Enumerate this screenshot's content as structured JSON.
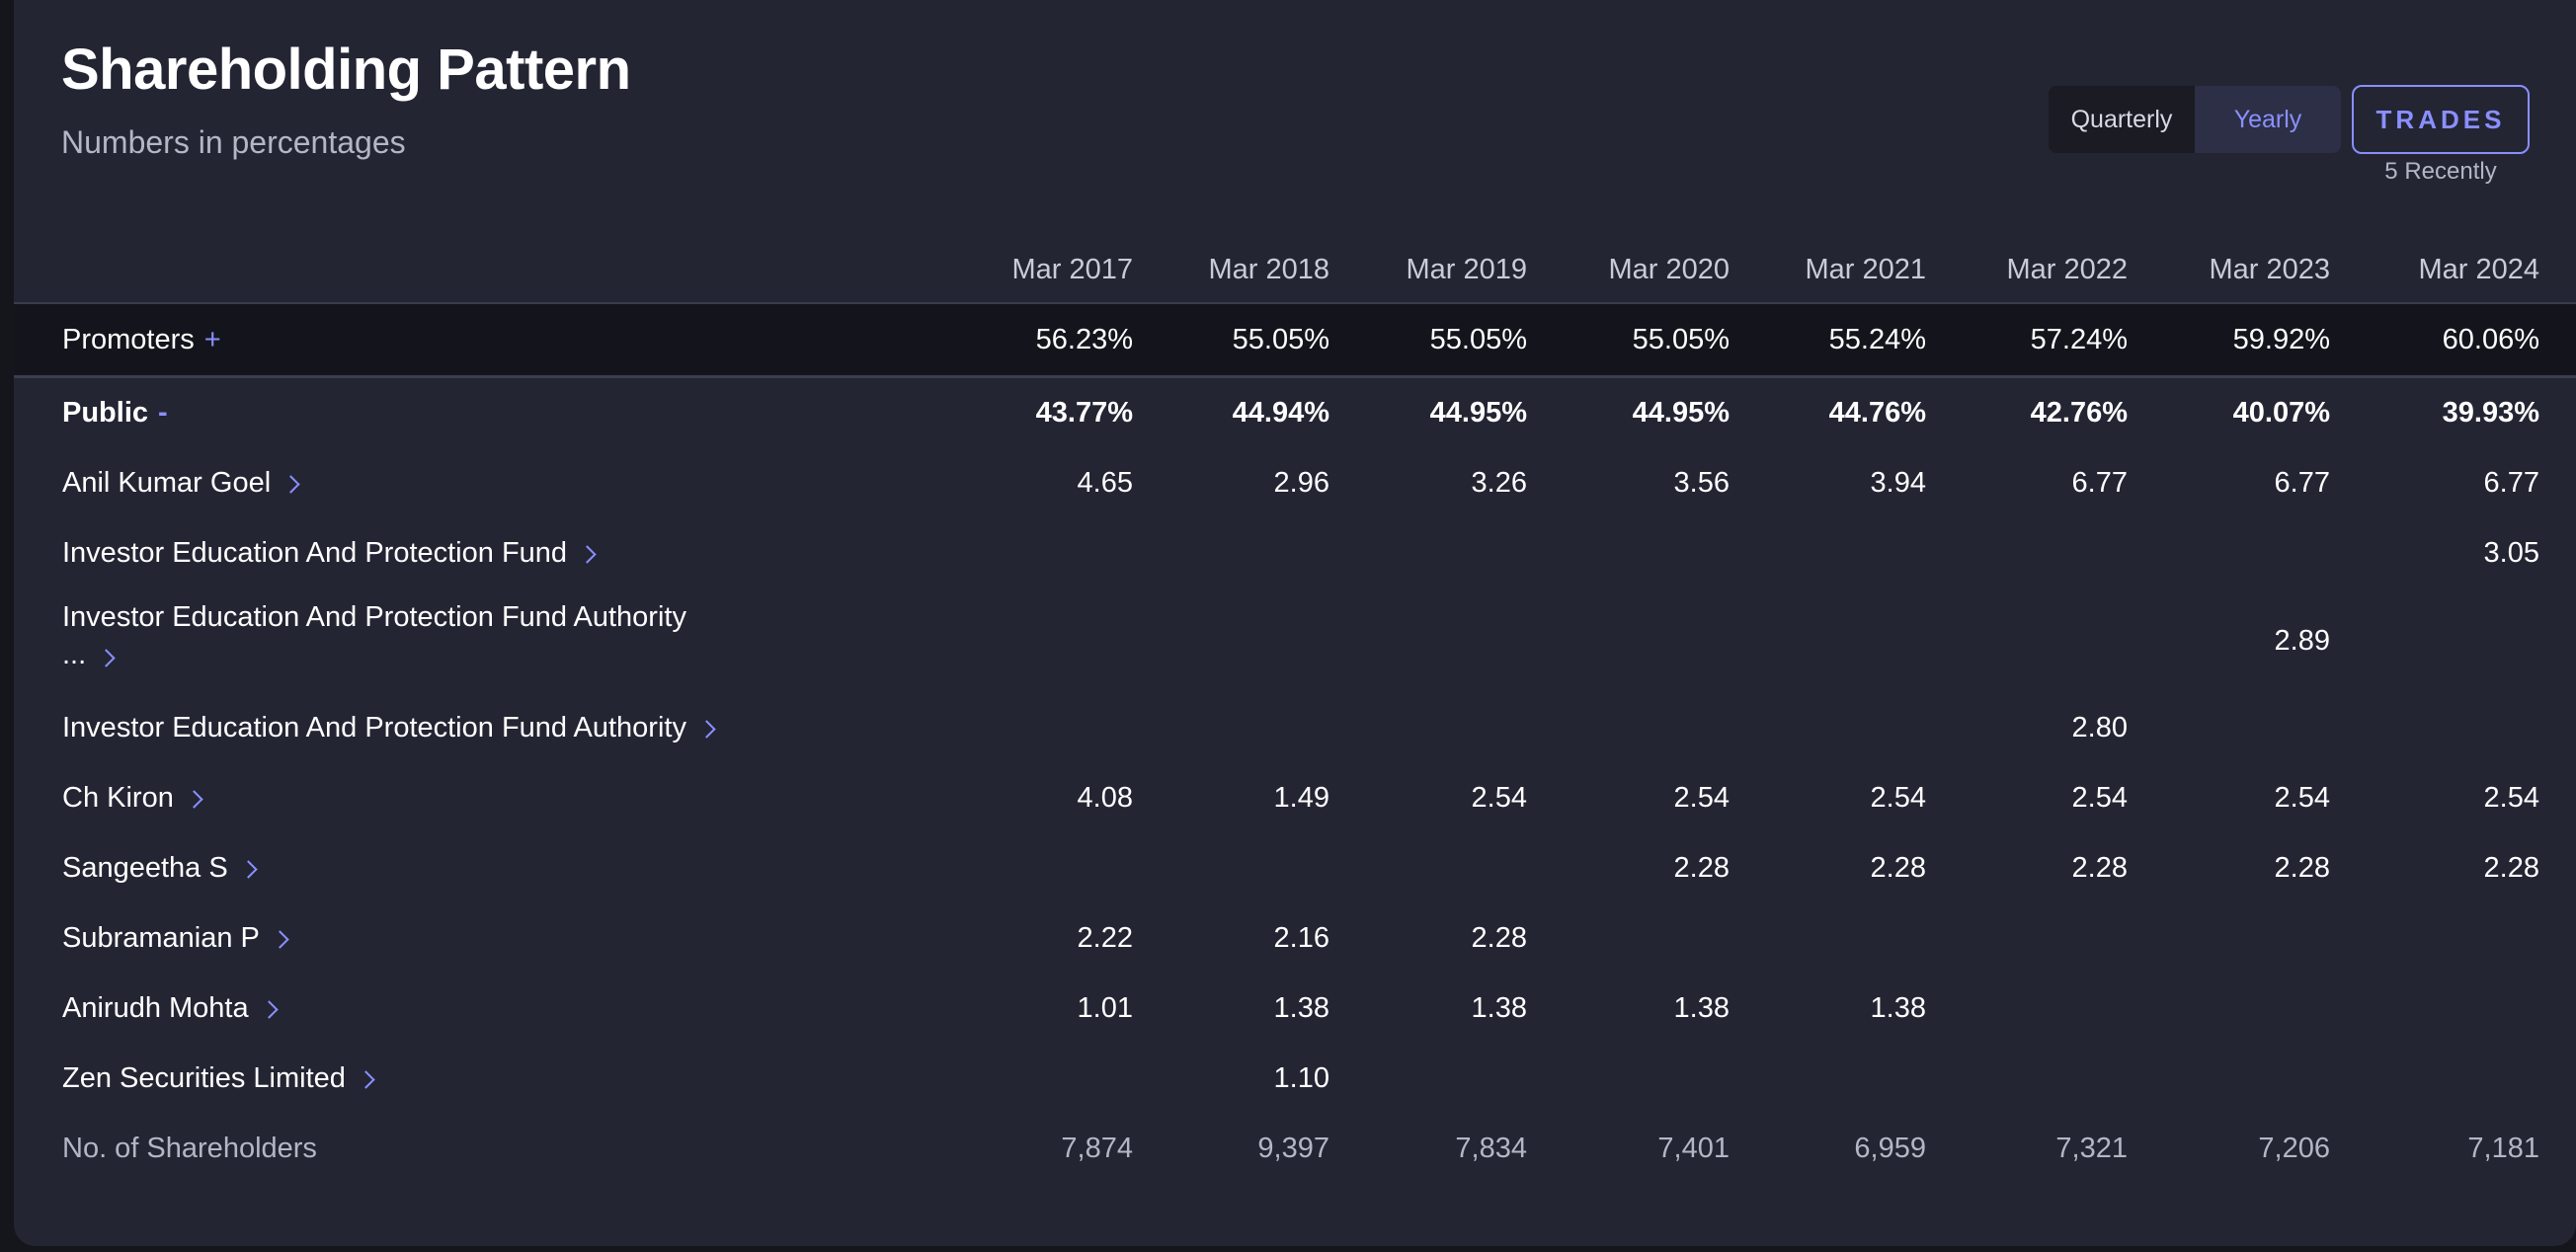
{
  "header": {
    "title": "Shareholding Pattern",
    "subtitle": "Numbers in percentages"
  },
  "toggle": {
    "options": [
      "Quarterly",
      "Yearly"
    ],
    "selected": "Yearly"
  },
  "trades": {
    "label": "TRADES",
    "note": "5 Recently"
  },
  "colors": {
    "background": "#232533",
    "accent": "#8a8fff",
    "promoters_row": "#14151c"
  },
  "table": {
    "columns": [
      "Mar 2017",
      "Mar 2018",
      "Mar 2019",
      "Mar 2020",
      "Mar 2021",
      "Mar 2022",
      "Mar 2023",
      "Mar 2024"
    ],
    "promoters": {
      "label": "Promoters",
      "toggle": "+",
      "values": [
        "56.23%",
        "55.05%",
        "55.05%",
        "55.05%",
        "55.24%",
        "57.24%",
        "59.92%",
        "60.06%"
      ]
    },
    "public": {
      "label": "Public",
      "toggle": "-",
      "values": [
        "43.77%",
        "44.94%",
        "44.95%",
        "44.95%",
        "44.76%",
        "42.76%",
        "40.07%",
        "39.93%"
      ]
    },
    "holders": [
      {
        "name": "Anil Kumar Goel",
        "values": [
          "4.65",
          "2.96",
          "3.26",
          "3.56",
          "3.94",
          "6.77",
          "6.77",
          "6.77"
        ]
      },
      {
        "name": "Investor Education And Protection Fund",
        "values": [
          "",
          "",
          "",
          "",
          "",
          "",
          "",
          "3.05"
        ]
      },
      {
        "name_line1": "Investor Education And Protection Fund Authority",
        "name_line2": "...",
        "values": [
          "",
          "",
          "",
          "",
          "",
          "",
          "2.89",
          ""
        ]
      },
      {
        "name": "Investor Education And Protection Fund Authority",
        "values": [
          "",
          "",
          "",
          "",
          "",
          "2.80",
          "",
          ""
        ]
      },
      {
        "name": "Ch Kiron",
        "values": [
          "4.08",
          "1.49",
          "2.54",
          "2.54",
          "2.54",
          "2.54",
          "2.54",
          "2.54"
        ]
      },
      {
        "name": "Sangeetha S",
        "values": [
          "",
          "",
          "",
          "2.28",
          "2.28",
          "2.28",
          "2.28",
          "2.28"
        ]
      },
      {
        "name": "Subramanian P",
        "values": [
          "2.22",
          "2.16",
          "2.28",
          "",
          "",
          "",
          "",
          ""
        ]
      },
      {
        "name": "Anirudh Mohta",
        "values": [
          "1.01",
          "1.38",
          "1.38",
          "1.38",
          "1.38",
          "",
          "",
          ""
        ]
      },
      {
        "name": "Zen Securities Limited",
        "values": [
          "",
          "1.10",
          "",
          "",
          "",
          "",
          "",
          ""
        ]
      }
    ],
    "shareholders": {
      "label": "No. of Shareholders",
      "values": [
        "7,874",
        "9,397",
        "7,834",
        "7,401",
        "6,959",
        "7,321",
        "7,206",
        "7,181"
      ]
    }
  }
}
